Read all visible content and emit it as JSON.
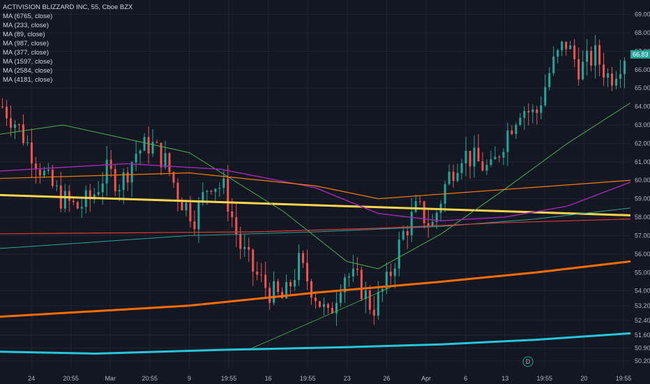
{
  "header": {
    "title": "ACTIVISION BLIZZARD INC, 55, Cboe BZX"
  },
  "legend": [
    {
      "label": "MA (6765, close)"
    },
    {
      "label": "MA (233, close)"
    },
    {
      "label": "MA (89, close)"
    },
    {
      "label": "MA (987, close)"
    },
    {
      "label": "MA (377, close)"
    },
    {
      "label": "MA (1597, close)"
    },
    {
      "label": "MA (2584, close)"
    },
    {
      "label": "MA (4181, close)"
    }
  ],
  "colors": {
    "background": "#131722",
    "grid": "#1f2433",
    "up": "#26a69a",
    "down": "#ef5350",
    "axis_text": "#b2b5be",
    "price_tag": "#26a69a"
  },
  "chart_data": {
    "type": "candlestick",
    "ylim": [
      50.2,
      69.4
    ],
    "y_ticks": [
      "69.00",
      "68.00",
      "67.00",
      "66.00",
      "65.00",
      "64.00",
      "63.00",
      "62.00",
      "61.00",
      "60.00",
      "59.00",
      "58.00",
      "57.00",
      "56.00",
      "55.00",
      "54.00",
      "53.20",
      "52.40",
      "51.60",
      "50.90",
      "50.20"
    ],
    "x_ticks": [
      "24",
      "20:55",
      "Mar",
      "20:55",
      "9",
      "19:55",
      "16",
      "19:55",
      "23",
      "26",
      "Apr",
      "6",
      "13",
      "19:55",
      "20",
      "19:55"
    ],
    "last_price": "66.83",
    "extra_price_tag": "D",
    "series": [
      {
        "name": "MA (6765, close)",
        "color": "#ffd54f",
        "width": 3,
        "x": [
          0,
          1
        ],
        "y": [
          59.2,
          58.1
        ]
      },
      {
        "name": "MA (233, close)",
        "color": "#4caf50",
        "width": 1,
        "x": [
          0,
          0.1,
          0.3,
          0.45,
          0.55,
          0.6,
          0.7,
          0.8,
          0.9,
          1
        ],
        "y": [
          62.5,
          63.0,
          61.5,
          58.3,
          55.6,
          55.2,
          57.1,
          59.5,
          62.0,
          64.2
        ]
      },
      {
        "name": "MA (89, close)",
        "color": "#9c27b0",
        "width": 1.5,
        "x": [
          0,
          0.2,
          0.35,
          0.5,
          0.6,
          0.7,
          0.8,
          0.9,
          1
        ],
        "y": [
          60.5,
          60.9,
          60.6,
          59.6,
          58.2,
          57.8,
          58.0,
          58.6,
          59.9
        ]
      },
      {
        "name": "MA (987, close)",
        "color": "#f57c00",
        "width": 1.2,
        "x": [
          0,
          0.3,
          0.5,
          0.6,
          0.8,
          1
        ],
        "y": [
          60.1,
          60.4,
          59.7,
          59.0,
          59.5,
          60.0
        ]
      },
      {
        "name": "MA (377, close)",
        "color": "#26a69a",
        "width": 1,
        "x": [
          0,
          0.3,
          0.5,
          0.7,
          0.85,
          1
        ],
        "y": [
          56.3,
          57.0,
          57.2,
          57.5,
          57.9,
          58.5
        ]
      },
      {
        "name": "MA (1597, close)",
        "color": "#e53935",
        "width": 1.2,
        "x": [
          0,
          0.4,
          0.6,
          0.8,
          1
        ],
        "y": [
          57.1,
          57.2,
          57.4,
          57.7,
          57.9
        ]
      },
      {
        "name": "MA (2584, close)",
        "color": "#ff6d00",
        "width": 3,
        "x": [
          0,
          0.3,
          0.5,
          0.7,
          0.85,
          1
        ],
        "y": [
          52.6,
          53.2,
          53.9,
          54.5,
          55.0,
          55.6
        ]
      },
      {
        "name": "MA (4181, close)",
        "color": "#26c6da",
        "width": 3,
        "x": [
          0,
          0.15,
          0.35,
          0.55,
          0.7,
          0.85,
          1
        ],
        "y": [
          50.7,
          50.6,
          50.8,
          50.95,
          51.1,
          51.35,
          51.7
        ]
      },
      {
        "name": "",
        "color": "#4caf50",
        "width": 0.8,
        "x": [
          0.4,
          0.48,
          0.62
        ],
        "y": [
          50.9,
          52.1,
          54.2
        ]
      }
    ],
    "candles_summary": {
      "start": 64.0,
      "path": [
        64.0,
        63.0,
        61.5,
        60.0,
        59.0,
        58.5,
        59.0,
        60.5,
        59.8,
        61.5,
        62.0,
        61.0,
        59.0,
        58.0,
        60.0,
        59.5,
        56.5,
        55.0,
        54.0,
        53.5,
        55.5,
        54.0,
        52.5,
        55.0,
        54.5,
        53.0,
        54.5,
        57.0,
        58.5,
        57.5,
        60.0,
        61.5,
        61.0,
        60.5,
        62.5,
        64.0,
        63.5,
        66.0,
        67.5,
        66.0,
        66.8,
        65.5,
        66.83
      ]
    }
  }
}
